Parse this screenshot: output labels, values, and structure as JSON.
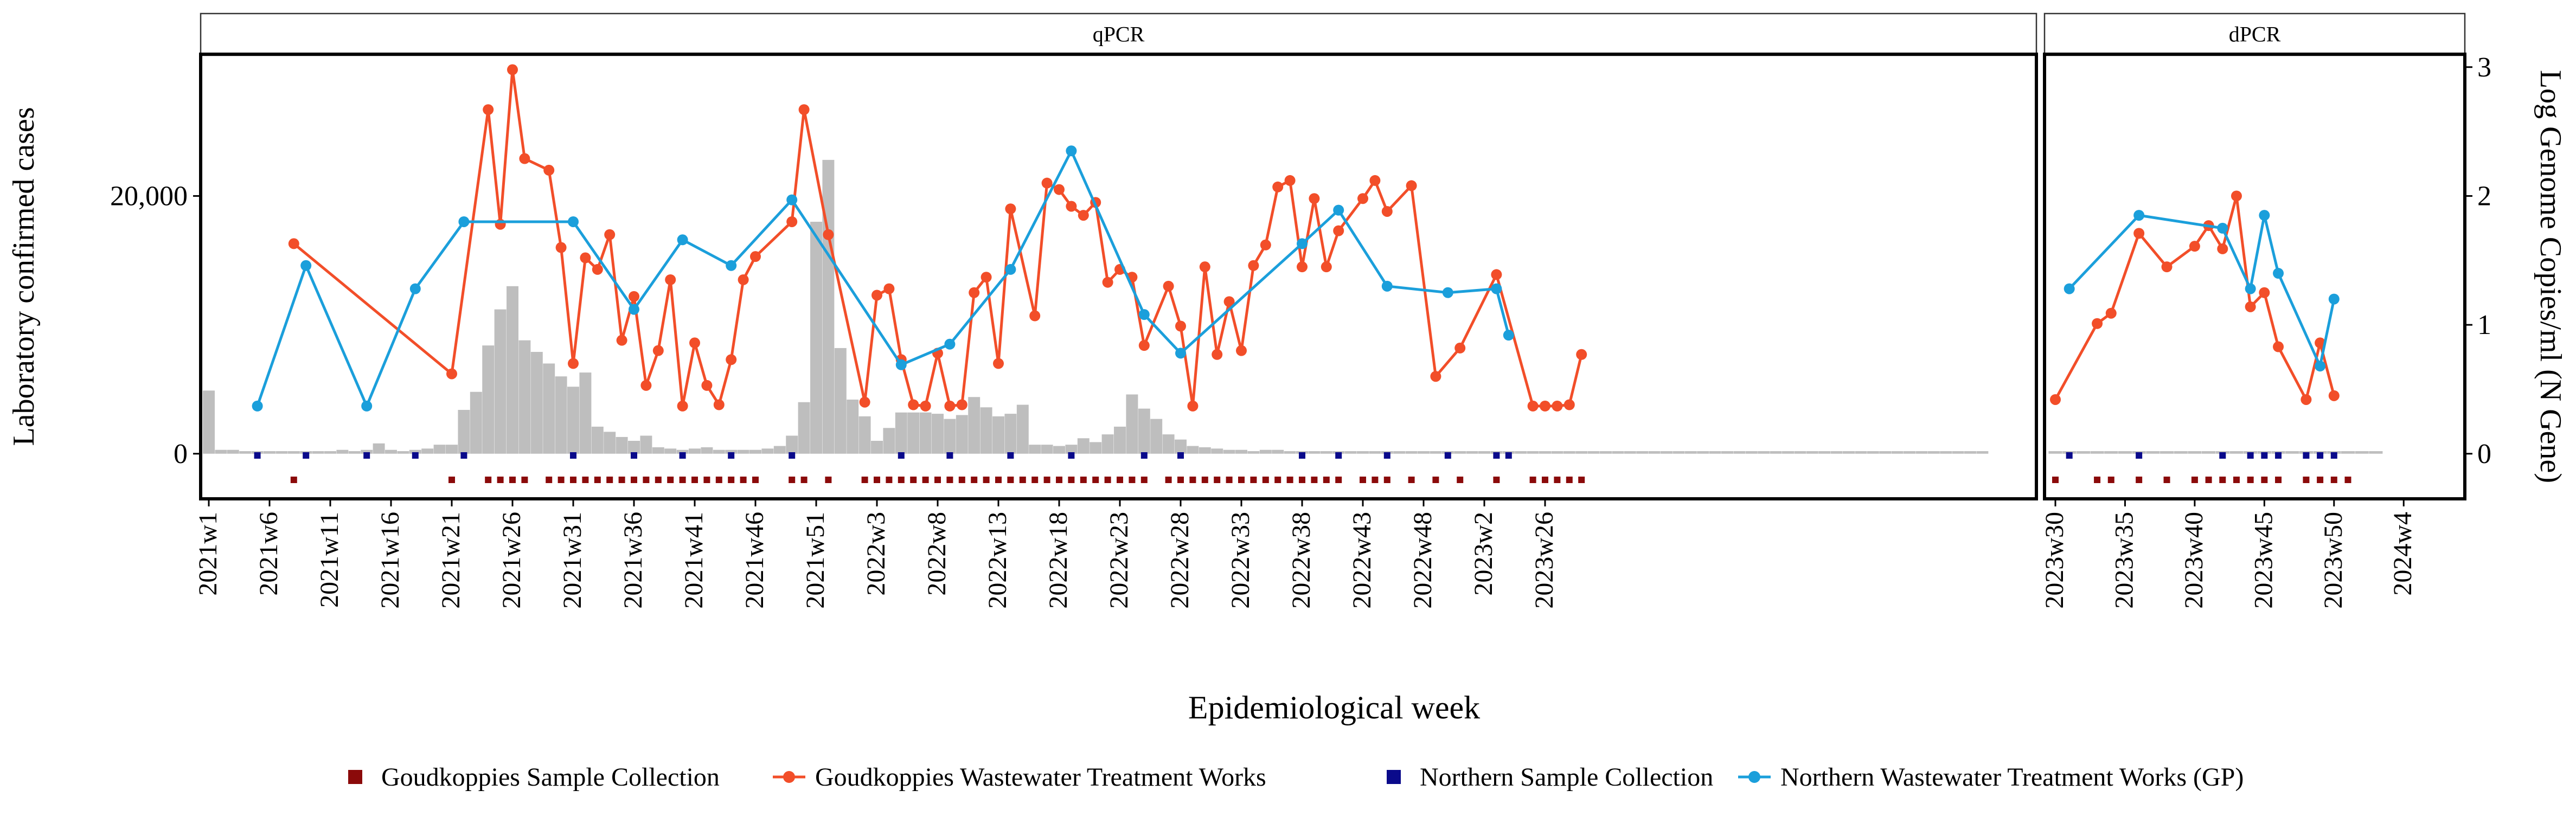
{
  "chart_data": {
    "type": "bar+line",
    "xlabel": "Epidemiological week",
    "ylabel_left": "Laboratory confirmed cases",
    "ylabel_right": "Log Genome Copies/ml (N Gene)",
    "left_ticks": [
      "0",
      "20,000"
    ],
    "right_ticks": [
      "0",
      "1",
      "2",
      "3"
    ],
    "ylim_left": [
      -3500,
      31000
    ],
    "ylim_right": [
      -0.35,
      3.1
    ],
    "grid": false,
    "legend_position": "bottom",
    "colors": {
      "goudkoppies_line": "#F24E29",
      "northern_line": "#1B9FDB",
      "goudkoppies_marker": "#8B0A0A",
      "northern_marker": "#0A0A8B",
      "cases_bar": "#BEBEBE",
      "strip_fill": "#FFFFFF"
    },
    "legend": [
      {
        "label": "Goudkoppies Sample Collection",
        "kind": "square",
        "color": "#8B0A0A"
      },
      {
        "label": "Goudkoppies Wastewater Treatment Works",
        "kind": "line",
        "color": "#F24E29"
      },
      {
        "label": "Northern Sample Collection",
        "kind": "square",
        "color": "#0A0A8B"
      },
      {
        "label": "Northern Wastewater Treatment Works (GP)",
        "kind": "line",
        "color": "#1B9FDB"
      }
    ],
    "panels": [
      {
        "strip": "qPCR",
        "x_ticks": [
          "2021w1",
          "2021w6",
          "2021w11",
          "2021w16",
          "2021w21",
          "2021w26",
          "2021w31",
          "2021w36",
          "2021w41",
          "2021w46",
          "2021w51",
          "2022w3",
          "2022w8",
          "2022w13",
          "2022w18",
          "2022w23",
          "2022w28",
          "2022w33",
          "2022w38",
          "2022w43",
          "2022w48",
          "2023w2",
          "2023w26"
        ],
        "cases": [
          4900,
          300,
          300,
          200,
          200,
          200,
          200,
          200,
          200,
          200,
          200,
          300,
          200,
          300,
          800,
          300,
          200,
          300,
          400,
          700,
          700,
          3400,
          4800,
          8400,
          11200,
          13000,
          8800,
          7900,
          7000,
          6000,
          5200,
          6300,
          2100,
          1700,
          1300,
          1000,
          1400,
          500,
          400,
          300,
          400,
          500,
          300,
          300,
          300,
          300,
          400,
          600,
          1400,
          4000,
          18000,
          22800,
          8200,
          4200,
          2900,
          1000,
          2000,
          3200,
          3200,
          3200,
          3100,
          2700,
          3000,
          4400,
          3600,
          2900,
          3100,
          3800,
          700,
          700,
          600,
          700,
          1200,
          900,
          1500,
          2100,
          4600,
          3500,
          2700,
          1500,
          1100,
          600,
          500,
          400,
          300,
          300,
          200,
          300,
          300,
          200,
          200,
          200,
          200,
          200,
          200,
          200,
          200,
          200,
          200,
          200,
          200,
          200,
          200,
          200,
          200,
          200,
          200,
          200,
          200,
          200,
          200,
          200,
          200,
          200,
          200,
          200,
          200,
          200,
          200,
          200,
          200,
          200,
          200,
          200,
          200,
          200,
          200,
          200,
          200,
          200,
          200,
          200,
          200,
          200,
          200,
          200,
          200,
          200,
          200,
          200,
          200,
          200,
          200,
          200,
          200,
          200,
          200
        ],
        "goudkoppies_series": [
          [
            7,
            1.63
          ],
          [
            20,
            0.62
          ],
          [
            23,
            2.67
          ],
          [
            24,
            1.78
          ],
          [
            25,
            2.98
          ],
          [
            26,
            2.29
          ],
          [
            28,
            2.2
          ],
          [
            29,
            1.6
          ],
          [
            30,
            0.7
          ],
          [
            31,
            1.52
          ],
          [
            32,
            1.43
          ],
          [
            33,
            1.7
          ],
          [
            34,
            0.88
          ],
          [
            35,
            1.22
          ],
          [
            36,
            0.53
          ],
          [
            37,
            0.8
          ],
          [
            38,
            1.35
          ],
          [
            39,
            0.37
          ],
          [
            40,
            0.86
          ],
          [
            41,
            0.53
          ],
          [
            42,
            0.38
          ],
          [
            43,
            0.73
          ],
          [
            44,
            1.35
          ],
          [
            45,
            1.53
          ],
          [
            48,
            1.8
          ],
          [
            49,
            2.67
          ],
          [
            51,
            1.7
          ],
          [
            54,
            0.4
          ],
          [
            55,
            1.23
          ],
          [
            56,
            1.28
          ],
          [
            57,
            0.73
          ],
          [
            58,
            0.38
          ],
          [
            59,
            0.37
          ],
          [
            60,
            0.78
          ],
          [
            61,
            0.37
          ],
          [
            62,
            0.38
          ],
          [
            63,
            1.25
          ],
          [
            64,
            1.37
          ],
          [
            65,
            0.7
          ],
          [
            66,
            1.9
          ],
          [
            68,
            1.07
          ],
          [
            69,
            2.1
          ],
          [
            70,
            2.05
          ],
          [
            71,
            1.92
          ],
          [
            72,
            1.85
          ],
          [
            73,
            1.95
          ],
          [
            74,
            1.33
          ],
          [
            75,
            1.43
          ],
          [
            76,
            1.37
          ],
          [
            77,
            0.84
          ],
          [
            79,
            1.3
          ],
          [
            80,
            0.99
          ],
          [
            81,
            0.37
          ],
          [
            82,
            1.45
          ],
          [
            83,
            0.77
          ],
          [
            84,
            1.18
          ],
          [
            85,
            0.8
          ],
          [
            86,
            1.46
          ],
          [
            87,
            1.62
          ],
          [
            88,
            2.07
          ],
          [
            89,
            2.12
          ],
          [
            90,
            1.45
          ],
          [
            91,
            1.98
          ],
          [
            92,
            1.45
          ],
          [
            93,
            1.73
          ],
          [
            95,
            1.98
          ],
          [
            96,
            2.12
          ],
          [
            97,
            1.88
          ],
          [
            99,
            2.08
          ],
          [
            101,
            0.6
          ],
          [
            103,
            0.82
          ],
          [
            106,
            1.39
          ],
          [
            109,
            0.37
          ],
          [
            110,
            0.37
          ],
          [
            111,
            0.37
          ],
          [
            112,
            0.38
          ],
          [
            113,
            0.77
          ]
        ],
        "northern_series": [
          [
            4,
            0.37
          ],
          [
            8,
            1.46
          ],
          [
            13,
            0.37
          ],
          [
            17,
            1.28
          ],
          [
            21,
            1.8
          ],
          [
            30,
            1.8
          ],
          [
            35,
            1.12
          ],
          [
            39,
            1.66
          ],
          [
            43,
            1.46
          ],
          [
            48,
            1.97
          ],
          [
            57,
            0.69
          ],
          [
            61,
            0.85
          ],
          [
            66,
            1.43
          ],
          [
            71,
            2.35
          ],
          [
            77,
            1.08
          ],
          [
            80,
            0.78
          ],
          [
            90,
            1.63
          ],
          [
            93,
            1.89
          ],
          [
            97,
            1.3
          ],
          [
            102,
            1.25
          ],
          [
            106,
            1.28
          ],
          [
            107,
            0.92
          ]
        ],
        "goudkoppies_collection_weeks": [
          7,
          20,
          23,
          24,
          25,
          26,
          28,
          29,
          30,
          31,
          32,
          33,
          34,
          35,
          36,
          37,
          38,
          39,
          40,
          41,
          42,
          43,
          44,
          45,
          48,
          49,
          51,
          54,
          55,
          56,
          57,
          58,
          59,
          60,
          61,
          62,
          63,
          64,
          65,
          66,
          67,
          68,
          69,
          70,
          71,
          72,
          73,
          74,
          75,
          76,
          77,
          79,
          80,
          81,
          82,
          83,
          84,
          85,
          86,
          87,
          88,
          89,
          90,
          91,
          92,
          93,
          95,
          96,
          97,
          99,
          101,
          103,
          106,
          109,
          110,
          111,
          112,
          113
        ],
        "northern_collection_weeks": [
          4,
          8,
          13,
          17,
          21,
          30,
          35,
          39,
          43,
          48,
          57,
          61,
          66,
          71,
          77,
          80,
          90,
          93,
          97,
          102,
          106,
          107
        ]
      },
      {
        "strip": "dPCR",
        "x_ticks": [
          "2023w30",
          "2023w35",
          "2023w40",
          "2023w45",
          "2023w50",
          "2024w4"
        ],
        "cases": [
          200,
          200,
          200,
          200,
          200,
          200,
          200,
          200,
          200,
          200,
          200,
          200,
          200,
          200,
          200,
          200,
          200,
          200,
          200,
          200,
          200,
          200,
          200,
          200
        ],
        "goudkoppies_series": [
          [
            0,
            0.42
          ],
          [
            3,
            1.01
          ],
          [
            4,
            1.09
          ],
          [
            6,
            1.71
          ],
          [
            8,
            1.45
          ],
          [
            10,
            1.61
          ],
          [
            11,
            1.77
          ],
          [
            12,
            1.59
          ],
          [
            13,
            2.0
          ],
          [
            14,
            1.14
          ],
          [
            15,
            1.25
          ],
          [
            16,
            0.83
          ],
          [
            18,
            0.42
          ],
          [
            19,
            0.86
          ],
          [
            20,
            0.45
          ]
        ],
        "northern_series": [
          [
            1,
            1.28
          ],
          [
            6,
            1.85
          ],
          [
            12,
            1.75
          ],
          [
            14,
            1.28
          ],
          [
            15,
            1.85
          ],
          [
            16,
            1.4
          ],
          [
            19,
            0.68
          ],
          [
            20,
            1.2
          ]
        ],
        "goudkoppies_collection_weeks": [
          0,
          3,
          4,
          6,
          8,
          10,
          11,
          12,
          13,
          14,
          15,
          16,
          18,
          19,
          20,
          21
        ],
        "northern_collection_weeks": [
          1,
          6,
          12,
          14,
          15,
          16,
          18,
          19,
          20
        ]
      }
    ]
  }
}
